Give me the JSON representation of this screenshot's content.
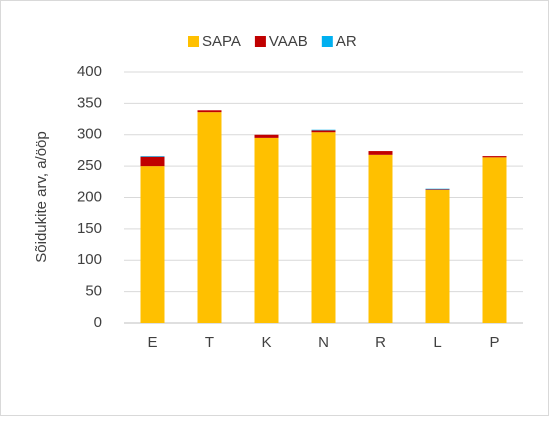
{
  "chart_data": {
    "type": "stacked_bar",
    "y_label": "Sõidukite arv, a/ööp",
    "categories": [
      "E",
      "T",
      "K",
      "N",
      "R",
      "L",
      "P"
    ],
    "series": [
      {
        "name": "SAPA",
        "color": "#FFC000",
        "values": [
          250,
          336,
          295,
          304,
          268,
          212,
          264
        ]
      },
      {
        "name": "VAAB",
        "color": "#C00000",
        "values": [
          15,
          3,
          5,
          3,
          6,
          1,
          2
        ]
      },
      {
        "name": "AR",
        "color": "#00B0F0",
        "values": [
          1,
          0,
          0,
          1,
          0,
          1,
          0
        ]
      }
    ],
    "ylim": [
      0,
      400
    ],
    "yticks": [
      0,
      50,
      100,
      150,
      200,
      250,
      300,
      350,
      400
    ],
    "grid": true,
    "legend": "top"
  }
}
